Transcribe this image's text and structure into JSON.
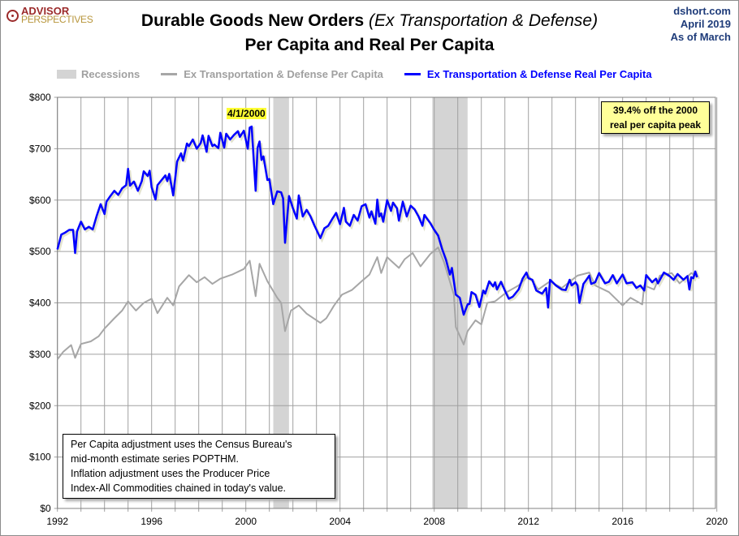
{
  "header": {
    "logo_line1": "ADVISOR",
    "logo_line2": "PERSPECTIVES",
    "title_main": "Durable Goods New Orders ",
    "title_italic": "(Ex Transportation & Defense)",
    "subtitle": "Per Capita and Real Per Capita",
    "source_line1": "dshort.com",
    "source_line2": "April 2019",
    "source_line3": "As of March"
  },
  "colors": {
    "real": "#0000ff",
    "nominal": "#a6a6a6",
    "recession": "#d4d4d4",
    "grid": "#a0a0a0"
  },
  "chart_data": {
    "type": "line",
    "title": "Durable Goods New Orders (Ex Transportation & Defense) Per Capita and Real Per Capita",
    "x_ticks": [
      "1992",
      "1996",
      "2000",
      "2004",
      "2008",
      "2012",
      "2016",
      "2020"
    ],
    "xlim": [
      "1992-01",
      "2020-01"
    ],
    "y_ticks": [
      "$0",
      "$100",
      "$200",
      "$300",
      "$400",
      "$500",
      "$600",
      "$700",
      "$800"
    ],
    "ylim": [
      0,
      800
    ],
    "grid": true,
    "legend": {
      "position": "top",
      "recessions_label": "Recessions"
    },
    "recessions": [
      [
        "2001-03",
        "2001-11"
      ],
      [
        "2007-12",
        "2009-06"
      ]
    ],
    "series": [
      {
        "name": "Ex Transportation & Defense Per Capita",
        "color": "#a6a6a6",
        "points": [
          [
            "1992-01",
            290
          ],
          [
            "1992-04",
            305
          ],
          [
            "1992-08",
            318
          ],
          [
            "1992-10",
            293
          ],
          [
            "1993-01",
            320
          ],
          [
            "1993-06",
            325
          ],
          [
            "1993-10",
            335
          ],
          [
            "1994-01",
            350
          ],
          [
            "1994-06",
            370
          ],
          [
            "1994-10",
            385
          ],
          [
            "1995-01",
            403
          ],
          [
            "1995-05",
            385
          ],
          [
            "1995-09",
            400
          ],
          [
            "1996-01",
            408
          ],
          [
            "1996-04",
            380
          ],
          [
            "1996-09",
            410
          ],
          [
            "1996-12",
            395
          ],
          [
            "1997-03",
            432
          ],
          [
            "1997-08",
            454
          ],
          [
            "1997-12",
            440
          ],
          [
            "1998-04",
            450
          ],
          [
            "1998-08",
            437
          ],
          [
            "1998-12",
            447
          ],
          [
            "1999-06",
            455
          ],
          [
            "1999-12",
            466
          ],
          [
            "2000-03",
            482
          ],
          [
            "2000-06",
            413
          ],
          [
            "2000-08",
            476
          ],
          [
            "2000-12",
            442
          ],
          [
            "2001-05",
            410
          ],
          [
            "2001-07",
            400
          ],
          [
            "2001-09",
            345
          ],
          [
            "2001-12",
            385
          ],
          [
            "2002-04",
            395
          ],
          [
            "2002-08",
            379
          ],
          [
            "2003-03",
            361
          ],
          [
            "2003-06",
            370
          ],
          [
            "2003-10",
            395
          ],
          [
            "2004-02",
            416
          ],
          [
            "2004-07",
            425
          ],
          [
            "2004-12",
            442
          ],
          [
            "2005-04",
            455
          ],
          [
            "2005-08",
            489
          ],
          [
            "2005-10",
            458
          ],
          [
            "2006-01",
            489
          ],
          [
            "2006-07",
            468
          ],
          [
            "2006-10",
            485
          ],
          [
            "2007-02",
            497
          ],
          [
            "2007-06",
            471
          ],
          [
            "2007-11",
            495
          ],
          [
            "2008-03",
            508
          ],
          [
            "2008-06",
            479
          ],
          [
            "2008-11",
            416
          ],
          [
            "2008-12",
            353
          ],
          [
            "2009-04",
            319
          ],
          [
            "2009-06",
            345
          ],
          [
            "2009-10",
            366
          ],
          [
            "2010-01",
            358
          ],
          [
            "2010-04",
            400
          ],
          [
            "2010-08",
            403
          ],
          [
            "2011-02",
            421
          ],
          [
            "2011-08",
            434
          ],
          [
            "2012-01",
            453
          ],
          [
            "2012-06",
            426
          ],
          [
            "2012-12",
            442
          ],
          [
            "2013-06",
            429
          ],
          [
            "2014-02",
            453
          ],
          [
            "2014-08",
            459
          ],
          [
            "2014-11",
            434
          ],
          [
            "2015-06",
            421
          ],
          [
            "2016-01",
            395
          ],
          [
            "2016-05",
            410
          ],
          [
            "2016-11",
            397
          ],
          [
            "2016-12",
            434
          ],
          [
            "2017-05",
            426
          ],
          [
            "2017-08",
            453
          ],
          [
            "2018-02",
            458
          ],
          [
            "2018-06",
            438
          ],
          [
            "2018-12",
            458
          ],
          [
            "2019-03",
            450
          ]
        ]
      },
      {
        "name": "Ex Transportation & Defense Real Per Capita",
        "color": "#0000ff",
        "points": [
          [
            "1992-01",
            504
          ],
          [
            "1992-03",
            533
          ],
          [
            "1992-05",
            537
          ],
          [
            "1992-07",
            542
          ],
          [
            "1992-09",
            542
          ],
          [
            "1992-10",
            497
          ],
          [
            "1992-11",
            539
          ],
          [
            "1993-01",
            558
          ],
          [
            "1993-03",
            543
          ],
          [
            "1993-05",
            548
          ],
          [
            "1993-07",
            543
          ],
          [
            "1993-09",
            569
          ],
          [
            "1993-11",
            592
          ],
          [
            "1994-01",
            573
          ],
          [
            "1994-02",
            597
          ],
          [
            "1994-04",
            608
          ],
          [
            "1994-06",
            618
          ],
          [
            "1994-08",
            610
          ],
          [
            "1994-10",
            623
          ],
          [
            "1994-12",
            629
          ],
          [
            "1995-01",
            661
          ],
          [
            "1995-02",
            628
          ],
          [
            "1995-04",
            636
          ],
          [
            "1995-06",
            618
          ],
          [
            "1995-08",
            637
          ],
          [
            "1995-09",
            656
          ],
          [
            "1995-11",
            647
          ],
          [
            "1995-12",
            657
          ],
          [
            "1996-01",
            625
          ],
          [
            "1996-03",
            601
          ],
          [
            "1996-04",
            629
          ],
          [
            "1996-08",
            648
          ],
          [
            "1996-09",
            637
          ],
          [
            "1996-10",
            651
          ],
          [
            "1996-12",
            609
          ],
          [
            "1997-02",
            675
          ],
          [
            "1997-04",
            691
          ],
          [
            "1997-05",
            677
          ],
          [
            "1997-07",
            710
          ],
          [
            "1997-08",
            705
          ],
          [
            "1997-10",
            718
          ],
          [
            "1997-12",
            700
          ],
          [
            "1998-02",
            711
          ],
          [
            "1998-03",
            726
          ],
          [
            "1998-05",
            694
          ],
          [
            "1998-06",
            725
          ],
          [
            "1998-08",
            705
          ],
          [
            "1998-09",
            708
          ],
          [
            "1998-11",
            701
          ],
          [
            "1998-12",
            731
          ],
          [
            "1999-02",
            702
          ],
          [
            "1999-03",
            729
          ],
          [
            "1999-05",
            718
          ],
          [
            "1999-07",
            727
          ],
          [
            "1999-09",
            734
          ],
          [
            "1999-10",
            723
          ],
          [
            "1999-12",
            735
          ],
          [
            "2000-02",
            700
          ],
          [
            "2000-03",
            741
          ],
          [
            "2000-04",
            743
          ],
          [
            "2000-06",
            618
          ],
          [
            "2000-07",
            702
          ],
          [
            "2000-08",
            714
          ],
          [
            "2000-09",
            678
          ],
          [
            "2000-10",
            685
          ],
          [
            "2000-12",
            639
          ],
          [
            "2001-01",
            641
          ],
          [
            "2001-03",
            592
          ],
          [
            "2001-05",
            617
          ],
          [
            "2001-07",
            615
          ],
          [
            "2001-08",
            603
          ],
          [
            "2001-09",
            517
          ],
          [
            "2001-11",
            608
          ],
          [
            "2002-01",
            584
          ],
          [
            "2002-03",
            564
          ],
          [
            "2002-04",
            609
          ],
          [
            "2002-06",
            568
          ],
          [
            "2002-08",
            581
          ],
          [
            "2002-10",
            568
          ],
          [
            "2002-12",
            550
          ],
          [
            "2003-03",
            526
          ],
          [
            "2003-05",
            545
          ],
          [
            "2003-07",
            550
          ],
          [
            "2003-09",
            563
          ],
          [
            "2003-11",
            575
          ],
          [
            "2004-01",
            553
          ],
          [
            "2004-03",
            585
          ],
          [
            "2004-04",
            558
          ],
          [
            "2004-06",
            550
          ],
          [
            "2004-08",
            571
          ],
          [
            "2004-10",
            560
          ],
          [
            "2004-12",
            588
          ],
          [
            "2005-02",
            592
          ],
          [
            "2005-04",
            566
          ],
          [
            "2005-05",
            578
          ],
          [
            "2005-07",
            554
          ],
          [
            "2005-08",
            601
          ],
          [
            "2005-09",
            568
          ],
          [
            "2005-10",
            574
          ],
          [
            "2005-11",
            558
          ],
          [
            "2006-01",
            600
          ],
          [
            "2006-03",
            579
          ],
          [
            "2006-04",
            595
          ],
          [
            "2006-06",
            584
          ],
          [
            "2006-07",
            560
          ],
          [
            "2006-09",
            597
          ],
          [
            "2006-11",
            568
          ],
          [
            "2007-01",
            589
          ],
          [
            "2007-03",
            582
          ],
          [
            "2007-05",
            568
          ],
          [
            "2007-07",
            550
          ],
          [
            "2007-08",
            571
          ],
          [
            "2007-11",
            555
          ],
          [
            "2008-01",
            542
          ],
          [
            "2008-03",
            531
          ],
          [
            "2008-05",
            505
          ],
          [
            "2008-07",
            484
          ],
          [
            "2008-09",
            455
          ],
          [
            "2008-10",
            468
          ],
          [
            "2008-12",
            416
          ],
          [
            "2009-02",
            410
          ],
          [
            "2009-04",
            377
          ],
          [
            "2009-06",
            397
          ],
          [
            "2009-07",
            398
          ],
          [
            "2009-08",
            421
          ],
          [
            "2009-10",
            416
          ],
          [
            "2009-12",
            392
          ],
          [
            "2010-02",
            424
          ],
          [
            "2010-03",
            418
          ],
          [
            "2010-05",
            442
          ],
          [
            "2010-07",
            432
          ],
          [
            "2010-08",
            440
          ],
          [
            "2010-09",
            426
          ],
          [
            "2010-11",
            441
          ],
          [
            "2011-01",
            424
          ],
          [
            "2011-03",
            408
          ],
          [
            "2011-05",
            412
          ],
          [
            "2011-08",
            426
          ],
          [
            "2011-10",
            447
          ],
          [
            "2011-12",
            459
          ],
          [
            "2012-01",
            448
          ],
          [
            "2012-03",
            445
          ],
          [
            "2012-05",
            424
          ],
          [
            "2012-08",
            418
          ],
          [
            "2012-10",
            429
          ],
          [
            "2012-11",
            391
          ],
          [
            "2012-12",
            445
          ],
          [
            "2013-03",
            434
          ],
          [
            "2013-06",
            426
          ],
          [
            "2013-08",
            425
          ],
          [
            "2013-10",
            445
          ],
          [
            "2013-11",
            434
          ],
          [
            "2014-01",
            440
          ],
          [
            "2014-02",
            434
          ],
          [
            "2014-03",
            400
          ],
          [
            "2014-05",
            437
          ],
          [
            "2014-06",
            442
          ],
          [
            "2014-08",
            453
          ],
          [
            "2014-09",
            437
          ],
          [
            "2014-11",
            440
          ],
          [
            "2015-01",
            458
          ],
          [
            "2015-04",
            438
          ],
          [
            "2015-06",
            441
          ],
          [
            "2015-08",
            454
          ],
          [
            "2015-10",
            438
          ],
          [
            "2016-01",
            455
          ],
          [
            "2016-03",
            438
          ],
          [
            "2016-06",
            440
          ],
          [
            "2016-08",
            429
          ],
          [
            "2016-10",
            434
          ],
          [
            "2016-12",
            424
          ],
          [
            "2017-01",
            454
          ],
          [
            "2017-04",
            440
          ],
          [
            "2017-06",
            447
          ],
          [
            "2017-07",
            438
          ],
          [
            "2017-08",
            445
          ],
          [
            "2017-10",
            459
          ],
          [
            "2018-01",
            452
          ],
          [
            "2018-03",
            445
          ],
          [
            "2018-05",
            456
          ],
          [
            "2018-08",
            445
          ],
          [
            "2018-10",
            452
          ],
          [
            "2018-11",
            426
          ],
          [
            "2018-12",
            450
          ],
          [
            "2019-01",
            448
          ],
          [
            "2019-02",
            461
          ],
          [
            "2019-03",
            450
          ]
        ]
      }
    ],
    "annotations": {
      "peak_label": "4/1/2000",
      "callout_line1": "39.4% off the 2000",
      "callout_line2": "real per capita peak",
      "note_lines": [
        "Per Capita adjustment uses the Census Bureau's",
        "mid-month estimate series POPTHM.",
        "Inflation adjustment uses the Producer Price",
        "Index-All Commodities chained in today's value."
      ]
    }
  }
}
